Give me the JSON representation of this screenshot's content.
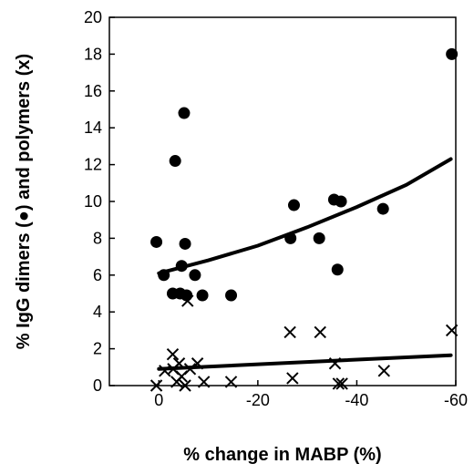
{
  "chart_data": {
    "type": "scatter",
    "xlabel": "% change in MABP (%)",
    "ylabel": "% IgG dimers (●) and polymers (x)",
    "xlim": [
      10,
      -60
    ],
    "ylim": [
      0,
      20
    ],
    "x_ticks": [
      {
        "value": 0,
        "label": "0"
      },
      {
        "value": -20,
        "label": "-20"
      },
      {
        "value": -40,
        "label": "-40"
      },
      {
        "value": -60,
        "label": "-60"
      }
    ],
    "y_ticks": [
      {
        "value": 0,
        "label": "0"
      },
      {
        "value": 2,
        "label": "2"
      },
      {
        "value": 4,
        "label": "4"
      },
      {
        "value": 6,
        "label": "6"
      },
      {
        "value": 8,
        "label": "8"
      },
      {
        "value": 10,
        "label": "10"
      },
      {
        "value": 12,
        "label": "12"
      },
      {
        "value": 14,
        "label": "14"
      },
      {
        "value": 16,
        "label": "16"
      },
      {
        "value": 18,
        "label": "18"
      },
      {
        "value": 20,
        "label": "20"
      }
    ],
    "grid": false,
    "series": [
      {
        "marker": "filled-circle",
        "color": "#000000",
        "points": [
          {
            "x": 0.5,
            "y": 7.8
          },
          {
            "x": -1,
            "y": 6.0
          },
          {
            "x": -2.8,
            "y": 5.0
          },
          {
            "x": -3.3,
            "y": 12.2
          },
          {
            "x": -4.3,
            "y": 5.0
          },
          {
            "x": -4.6,
            "y": 6.5
          },
          {
            "x": -5.1,
            "y": 14.8
          },
          {
            "x": -5.3,
            "y": 7.7
          },
          {
            "x": -5.6,
            "y": 4.9
          },
          {
            "x": -7.3,
            "y": 6.0
          },
          {
            "x": -8.8,
            "y": 4.9
          },
          {
            "x": -14.6,
            "y": 4.9
          },
          {
            "x": -26.6,
            "y": 8.0
          },
          {
            "x": -27.3,
            "y": 9.8
          },
          {
            "x": -32.4,
            "y": 8.0
          },
          {
            "x": -35.4,
            "y": 10.1
          },
          {
            "x": -36.1,
            "y": 6.3
          },
          {
            "x": -36.8,
            "y": 10.0
          },
          {
            "x": -45.3,
            "y": 9.6
          },
          {
            "x": -59.2,
            "y": 18.0
          }
        ]
      },
      {
        "marker": "cross",
        "color": "#000000",
        "points": [
          {
            "x": 0.5,
            "y": 0.0
          },
          {
            "x": -1.2,
            "y": 0.8
          },
          {
            "x": -2.8,
            "y": 1.7
          },
          {
            "x": -2.9,
            "y": 0.9
          },
          {
            "x": -3.6,
            "y": 0.2
          },
          {
            "x": -4.1,
            "y": 1.2
          },
          {
            "x": -4.6,
            "y": 0.5
          },
          {
            "x": -5.3,
            "y": 0.0
          },
          {
            "x": -5.8,
            "y": 4.6
          },
          {
            "x": -6.3,
            "y": 0.9
          },
          {
            "x": -7.8,
            "y": 1.2
          },
          {
            "x": -9.1,
            "y": 0.2
          },
          {
            "x": -14.6,
            "y": 0.2
          },
          {
            "x": -26.5,
            "y": 2.9
          },
          {
            "x": -27.0,
            "y": 0.4
          },
          {
            "x": -32.6,
            "y": 2.9
          },
          {
            "x": -35.6,
            "y": 1.2
          },
          {
            "x": -36.3,
            "y": 0.1
          },
          {
            "x": -37.0,
            "y": 0.1
          },
          {
            "x": -45.5,
            "y": 0.8
          },
          {
            "x": -59.2,
            "y": 3.0
          }
        ]
      }
    ],
    "trendlines": [
      {
        "type": "exponential",
        "series": 0,
        "points": [
          {
            "x": 0,
            "y": 6.1
          },
          {
            "x": -10,
            "y": 6.8
          },
          {
            "x": -20,
            "y": 7.6
          },
          {
            "x": -30,
            "y": 8.6
          },
          {
            "x": -40,
            "y": 9.7
          },
          {
            "x": -50,
            "y": 10.9
          },
          {
            "x": -59,
            "y": 12.3
          }
        ]
      },
      {
        "type": "linear",
        "series": 1,
        "points": [
          {
            "x": 0,
            "y": 0.9
          },
          {
            "x": -59,
            "y": 1.65
          }
        ]
      }
    ]
  }
}
